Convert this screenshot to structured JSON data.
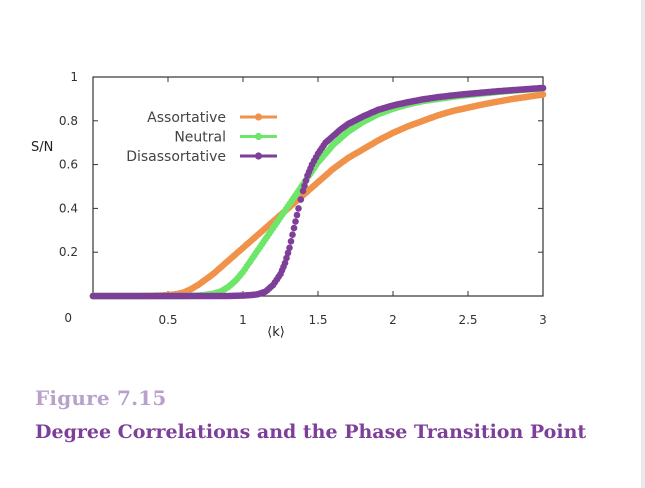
{
  "figure": {
    "number": "Figure  7.15",
    "title": "Degree Correlations and the Phase Transition Point"
  },
  "chart_data": {
    "type": "scatter",
    "xlabel": "⟨k⟩",
    "ylabel": "S/N",
    "xlim": [
      0,
      3
    ],
    "ylim": [
      0,
      1
    ],
    "x_ticks": [
      0.5,
      1,
      1.5,
      2,
      2.5,
      3
    ],
    "x_tick_labels": [
      "0.5",
      "1",
      "1.5",
      "2",
      "2.5",
      "3"
    ],
    "y_ticks": [
      0,
      0.2,
      0.4,
      0.6,
      0.8,
      1
    ],
    "y_tick_labels": [
      "0",
      "0.2",
      "0.4",
      "0.6",
      "0.8",
      "1"
    ],
    "grid": false,
    "legend_position": "top-left",
    "series": [
      {
        "name": "Assortative",
        "color": "#f0924a",
        "x": [
          0,
          0.1,
          0.2,
          0.3,
          0.4,
          0.5,
          0.55,
          0.6,
          0.65,
          0.7,
          0.75,
          0.8,
          0.85,
          0.9,
          0.95,
          1.0,
          1.05,
          1.1,
          1.15,
          1.2,
          1.25,
          1.3,
          1.35,
          1.4,
          1.45,
          1.5,
          1.55,
          1.6,
          1.7,
          1.8,
          1.9,
          2.0,
          2.1,
          2.2,
          2.3,
          2.4,
          2.5,
          2.6,
          2.7,
          2.8,
          2.9,
          3.0
        ],
        "y": [
          0,
          0,
          0,
          0,
          0.001,
          0.004,
          0.008,
          0.015,
          0.03,
          0.05,
          0.075,
          0.1,
          0.13,
          0.16,
          0.19,
          0.22,
          0.25,
          0.28,
          0.31,
          0.34,
          0.37,
          0.4,
          0.43,
          0.46,
          0.49,
          0.52,
          0.55,
          0.58,
          0.63,
          0.67,
          0.71,
          0.745,
          0.775,
          0.8,
          0.825,
          0.845,
          0.86,
          0.875,
          0.888,
          0.9,
          0.91,
          0.92
        ]
      },
      {
        "name": "Neutral",
        "color": "#6ee66a",
        "x": [
          0,
          0.2,
          0.4,
          0.6,
          0.7,
          0.75,
          0.8,
          0.85,
          0.9,
          0.95,
          1.0,
          1.05,
          1.1,
          1.15,
          1.2,
          1.25,
          1.3,
          1.35,
          1.4,
          1.45,
          1.5,
          1.55,
          1.6,
          1.7,
          1.8,
          1.9,
          2.0,
          2.1,
          2.2,
          2.3,
          2.4,
          2.5,
          2.6,
          2.7,
          2.8,
          2.9,
          3.0
        ],
        "y": [
          0,
          0,
          0,
          0,
          0.002,
          0.005,
          0.01,
          0.02,
          0.04,
          0.07,
          0.11,
          0.16,
          0.21,
          0.26,
          0.31,
          0.36,
          0.41,
          0.46,
          0.51,
          0.56,
          0.61,
          0.65,
          0.69,
          0.75,
          0.795,
          0.83,
          0.855,
          0.875,
          0.89,
          0.9,
          0.91,
          0.918,
          0.925,
          0.932,
          0.938,
          0.943,
          0.948
        ]
      },
      {
        "name": "Disassortative",
        "color": "#7d3f98",
        "x": [
          0,
          0.2,
          0.4,
          0.6,
          0.8,
          0.9,
          1.0,
          1.05,
          1.1,
          1.15,
          1.2,
          1.25,
          1.28,
          1.31,
          1.34,
          1.37,
          1.4,
          1.43,
          1.46,
          1.5,
          1.55,
          1.6,
          1.65,
          1.7,
          1.8,
          1.9,
          2.0,
          2.1,
          2.2,
          2.3,
          2.4,
          2.5,
          2.6,
          2.7,
          2.8,
          2.9,
          3.0
        ],
        "y": [
          0,
          0,
          0,
          0,
          0,
          0,
          0.002,
          0.004,
          0.008,
          0.02,
          0.05,
          0.1,
          0.15,
          0.22,
          0.31,
          0.4,
          0.48,
          0.55,
          0.6,
          0.65,
          0.7,
          0.73,
          0.76,
          0.785,
          0.82,
          0.85,
          0.87,
          0.885,
          0.898,
          0.908,
          0.916,
          0.923,
          0.929,
          0.935,
          0.94,
          0.945,
          0.95
        ]
      }
    ]
  }
}
